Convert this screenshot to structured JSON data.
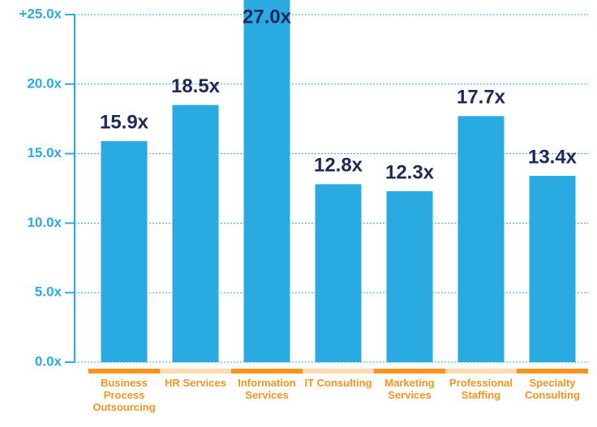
{
  "chart_data": {
    "type": "bar",
    "categories": [
      "Business Process Outsourcing",
      "HR Services",
      "Information Services",
      "IT Consulting",
      "Marketing Services",
      "Professional Staffing",
      "Specialty Consulting"
    ],
    "values": [
      15.9,
      18.5,
      27.0,
      12.8,
      12.3,
      17.7,
      13.4
    ],
    "value_labels": [
      "15.9x",
      "18.5x",
      "27.0x",
      "12.8x",
      "12.3x",
      "17.7x",
      "13.4x"
    ],
    "color": "#29abe2",
    "ylim": [
      0,
      25
    ],
    "yticks": [
      {
        "value": 0,
        "label": "0.0x"
      },
      {
        "value": 5,
        "label": "5.0x"
      },
      {
        "value": 10,
        "label": "10.0x"
      },
      {
        "value": 15,
        "label": "15.0x"
      },
      {
        "value": 20,
        "label": "20.0x"
      },
      {
        "value": 25,
        "label": "+25.0x"
      }
    ],
    "grid": true
  }
}
